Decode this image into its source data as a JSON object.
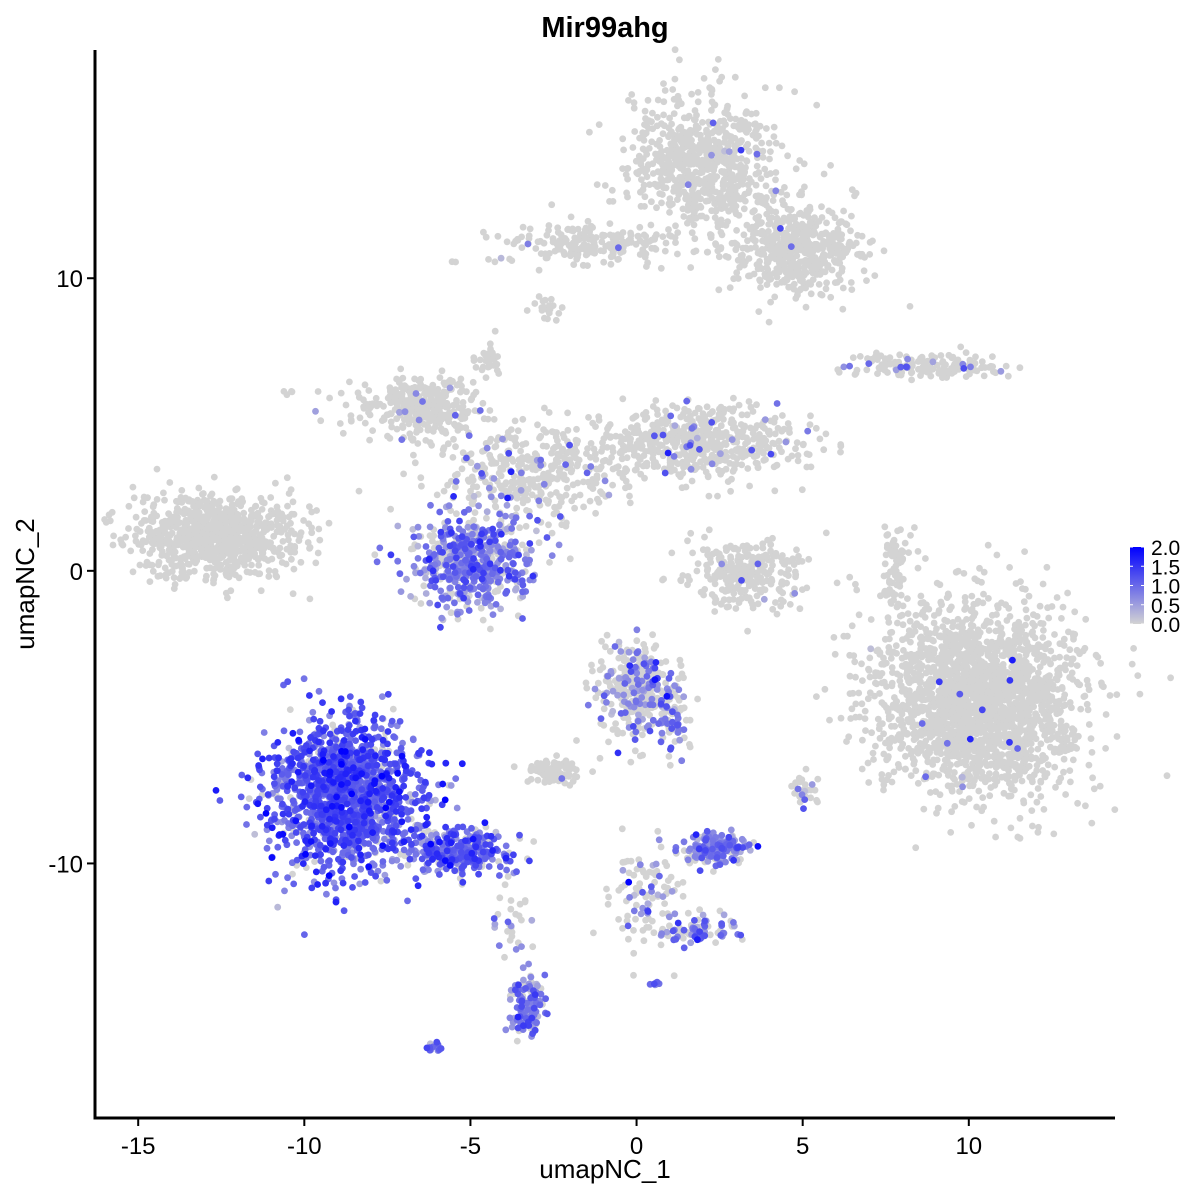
{
  "chart_data": {
    "type": "scatter",
    "title": "Mir99ahg",
    "xlabel": "umapNC_1",
    "ylabel": "umapNC_2",
    "xlim": [
      -16.3,
      14.4
    ],
    "ylim": [
      -18.7,
      17.8
    ],
    "xticks": [
      -15,
      -10,
      -5,
      0,
      5,
      10
    ],
    "yticks": [
      -10,
      0,
      10
    ],
    "grid": false,
    "color_scale": {
      "low": "#d3d3d3",
      "high": "#0000ff",
      "min": 0,
      "max": 2.0
    },
    "legend": {
      "position": "right",
      "labels": [
        "2.0",
        "1.5",
        "1.0",
        "0.5",
        "0.0"
      ]
    },
    "clusters": [
      {
        "center": [
          2.0,
          14.0
        ],
        "sd": [
          1.1,
          1.2
        ],
        "n": 700,
        "expr_frac": 0.02,
        "expr_mean": 0.8
      },
      {
        "center": [
          4.8,
          11.0
        ],
        "sd": [
          1.0,
          0.8
        ],
        "n": 500,
        "expr_frac": 0.02,
        "expr_mean": 0.8
      },
      {
        "center": [
          -1.3,
          11.2
        ],
        "sd": [
          1.4,
          0.35
        ],
        "n": 220,
        "expr_frac": 0.01,
        "expr_mean": 0.8
      },
      {
        "center": [
          -2.7,
          8.9
        ],
        "sd": [
          0.2,
          0.2
        ],
        "n": 20,
        "expr_frac": 0,
        "expr_mean": 0
      },
      {
        "center": [
          -12.7,
          1.2
        ],
        "sd": [
          1.2,
          0.7
        ],
        "n": 900,
        "expr_frac": 0,
        "expr_mean": 0
      },
      {
        "center": [
          -6.5,
          5.6
        ],
        "sd": [
          0.9,
          0.5
        ],
        "n": 350,
        "expr_frac": 0.02,
        "expr_mean": 0.8
      },
      {
        "center": [
          -3.2,
          3.3
        ],
        "sd": [
          1.3,
          0.8
        ],
        "n": 350,
        "expr_frac": 0.1,
        "expr_mean": 0.9
      },
      {
        "center": [
          1.8,
          4.4
        ],
        "sd": [
          1.6,
          0.6
        ],
        "n": 600,
        "expr_frac": 0.05,
        "expr_mean": 0.9
      },
      {
        "center": [
          -4.4,
          7.2
        ],
        "sd": [
          0.2,
          0.3
        ],
        "n": 30,
        "expr_frac": 0,
        "expr_mean": 0
      },
      {
        "center": [
          -5.0,
          0.3
        ],
        "sd": [
          0.9,
          0.8
        ],
        "n": 550,
        "expr_frac": 0.75,
        "expr_mean": 0.85
      },
      {
        "center": [
          3.3,
          -0.1
        ],
        "sd": [
          0.9,
          0.6
        ],
        "n": 260,
        "expr_frac": 0.02,
        "expr_mean": 0.8
      },
      {
        "center": [
          10.3,
          -4.4
        ],
        "sd": [
          1.5,
          1.6
        ],
        "n": 2200,
        "expr_frac": 0.005,
        "expr_mean": 1.0
      },
      {
        "center": [
          7.8,
          0.1
        ],
        "sd": [
          0.2,
          0.9
        ],
        "n": 80,
        "expr_frac": 0,
        "expr_mean": 0
      },
      {
        "center": [
          8.8,
          7.0
        ],
        "sd": [
          1.2,
          0.2
        ],
        "n": 160,
        "expr_frac": 0.1,
        "expr_mean": 1.0
      },
      {
        "center": [
          -8.8,
          -7.6
        ],
        "sd": [
          1.1,
          1.3
        ],
        "n": 1500,
        "expr_frac": 0.9,
        "expr_mean": 1.1
      },
      {
        "center": [
          -5.3,
          -9.6
        ],
        "sd": [
          0.8,
          0.4
        ],
        "n": 300,
        "expr_frac": 0.8,
        "expr_mean": 1.0
      },
      {
        "center": [
          -3.3,
          -14.8
        ],
        "sd": [
          0.25,
          0.6
        ],
        "n": 120,
        "expr_frac": 0.8,
        "expr_mean": 0.9
      },
      {
        "center": [
          -3.8,
          -12.0
        ],
        "sd": [
          0.3,
          0.8
        ],
        "n": 30,
        "expr_frac": 0.3,
        "expr_mean": 0.8
      },
      {
        "center": [
          0.0,
          -4.1
        ],
        "sd": [
          0.6,
          0.8
        ],
        "n": 350,
        "expr_frac": 0.3,
        "expr_mean": 0.9
      },
      {
        "center": [
          1.1,
          -5.1
        ],
        "sd": [
          0.3,
          0.7
        ],
        "n": 60,
        "expr_frac": 0.4,
        "expr_mean": 0.9
      },
      {
        "center": [
          -2.6,
          -6.8
        ],
        "sd": [
          0.4,
          0.2
        ],
        "n": 90,
        "expr_frac": 0.02,
        "expr_mean": 0.8
      },
      {
        "center": [
          2.4,
          -9.5
        ],
        "sd": [
          0.5,
          0.25
        ],
        "n": 220,
        "expr_frac": 0.7,
        "expr_mean": 0.8
      },
      {
        "center": [
          0.3,
          -11.0
        ],
        "sd": [
          0.5,
          1.0
        ],
        "n": 100,
        "expr_frac": 0.3,
        "expr_mean": 0.8
      },
      {
        "center": [
          1.9,
          -12.3
        ],
        "sd": [
          0.6,
          0.25
        ],
        "n": 80,
        "expr_frac": 0.6,
        "expr_mean": 0.9
      },
      {
        "center": [
          5.0,
          -7.5
        ],
        "sd": [
          0.2,
          0.3
        ],
        "n": 30,
        "expr_frac": 0.3,
        "expr_mean": 0.8
      },
      {
        "center": [
          -6.0,
          -16.3
        ],
        "sd": [
          0.15,
          0.1
        ],
        "n": 12,
        "expr_frac": 1,
        "expr_mean": 0.8
      },
      {
        "center": [
          0.6,
          -14.1
        ],
        "sd": [
          0.1,
          0.1
        ],
        "n": 8,
        "expr_frac": 1,
        "expr_mean": 0.8
      },
      {
        "center": [
          -10.5,
          6.1
        ],
        "sd": [
          0.08,
          0.08
        ],
        "n": 4,
        "expr_frac": 0,
        "expr_mean": 0
      }
    ]
  }
}
